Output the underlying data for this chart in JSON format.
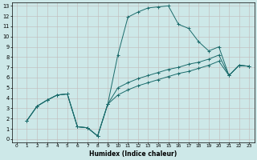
{
  "xlabel": "Humidex (Indice chaleur)",
  "background_color": "#cde8e8",
  "grid_color": "#c0b8b8",
  "line_color": "#1a6b6b",
  "xlim": [
    -0.5,
    23.5
  ],
  "ylim": [
    -0.3,
    13.3
  ],
  "xticks": [
    0,
    1,
    2,
    3,
    4,
    5,
    6,
    7,
    8,
    9,
    10,
    11,
    12,
    13,
    14,
    15,
    16,
    17,
    18,
    19,
    20,
    21,
    22,
    23
  ],
  "yticks": [
    0,
    1,
    2,
    3,
    4,
    5,
    6,
    7,
    8,
    9,
    10,
    11,
    12,
    13
  ],
  "curve1_x": [
    1,
    2,
    3,
    4,
    5,
    6,
    7,
    8,
    9,
    10,
    11,
    12,
    13,
    14,
    15,
    16,
    17,
    18,
    19,
    20,
    21,
    22,
    23
  ],
  "curve1_y": [
    1.8,
    3.2,
    3.8,
    4.3,
    4.4,
    1.2,
    1.1,
    0.3,
    3.4,
    8.2,
    11.9,
    12.4,
    12.8,
    12.9,
    13.0,
    11.2,
    10.8,
    9.5,
    8.6,
    9.0,
    6.2,
    7.2,
    7.1
  ],
  "curve2_x": [
    1,
    2,
    3,
    4,
    5,
    6,
    7,
    8,
    9,
    10,
    11,
    12,
    13,
    14,
    15,
    16,
    17,
    18,
    19,
    20,
    21,
    22,
    23
  ],
  "curve2_y": [
    1.8,
    3.2,
    3.8,
    4.3,
    4.4,
    1.2,
    1.1,
    0.3,
    3.4,
    5.0,
    5.5,
    5.9,
    6.2,
    6.5,
    6.8,
    7.0,
    7.3,
    7.5,
    7.8,
    8.2,
    6.2,
    7.2,
    7.1
  ],
  "curve3_x": [
    1,
    2,
    3,
    4,
    5,
    6,
    7,
    8,
    9,
    10,
    11,
    12,
    13,
    14,
    15,
    16,
    17,
    18,
    19,
    20,
    21,
    22,
    23
  ],
  "curve3_y": [
    1.8,
    3.2,
    3.8,
    4.3,
    4.4,
    1.2,
    1.1,
    0.3,
    3.4,
    4.3,
    4.8,
    5.2,
    5.5,
    5.8,
    6.1,
    6.4,
    6.6,
    6.9,
    7.2,
    7.6,
    6.2,
    7.2,
    7.1
  ]
}
